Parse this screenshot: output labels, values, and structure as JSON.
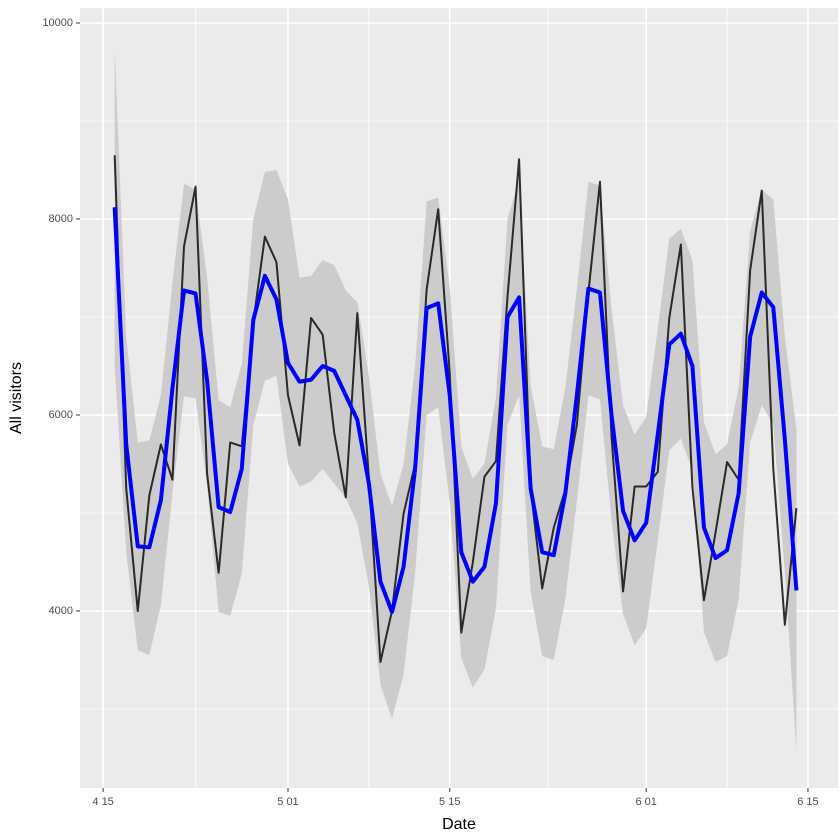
{
  "chart_data": {
    "type": "line",
    "xlabel": "Date",
    "ylabel": "All visitors",
    "x": [
      1,
      2,
      3,
      4,
      5,
      6,
      7,
      8,
      9,
      10,
      11,
      12,
      13,
      14,
      15,
      16,
      17,
      18,
      19,
      20,
      21,
      22,
      23,
      24,
      25,
      26,
      27,
      28,
      29,
      30,
      31,
      32,
      33,
      34,
      35,
      36,
      37,
      38,
      39,
      40,
      41,
      42,
      43,
      44,
      45,
      46,
      47,
      48,
      49,
      50,
      51,
      52,
      53,
      54,
      55,
      56,
      57,
      58,
      59,
      60
    ],
    "band": {
      "color": "#cccccc",
      "lower": [
        6500,
        4600,
        3600,
        3550,
        4060,
        5200,
        6190,
        6170,
        5280,
        3990,
        3950,
        4380,
        5900,
        6350,
        6400,
        5500,
        5270,
        5320,
        5450,
        5300,
        5150,
        4900,
        4250,
        3250,
        2900,
        3350,
        4380,
        6000,
        6080,
        5100,
        3520,
        3220,
        3400,
        4030,
        5900,
        6200,
        4200,
        3540,
        3500,
        4120,
        5120,
        6200,
        6160,
        4930,
        3970,
        3650,
        3820,
        4720,
        5640,
        5760,
        5430,
        3780,
        3480,
        3540,
        4120,
        5720,
        6100,
        5900,
        4400,
        2580
      ],
      "upper": [
        9750,
        6800,
        5720,
        5740,
        6200,
        7350,
        8360,
        8300,
        7400,
        6150,
        6080,
        6520,
        8000,
        8480,
        8500,
        8200,
        7400,
        7420,
        7580,
        7530,
        7270,
        7150,
        6400,
        5400,
        5070,
        5500,
        6500,
        8180,
        8220,
        7300,
        5680,
        5350,
        5500,
        6180,
        8000,
        8400,
        6300,
        5680,
        5650,
        6280,
        7280,
        8380,
        8340,
        7080,
        6100,
        5800,
        5980,
        6880,
        7800,
        7900,
        7580,
        5930,
        5600,
        5700,
        6280,
        7880,
        8300,
        8200,
        6800,
        5850
      ]
    },
    "series": [
      {
        "color": "#000000",
        "width": 2,
        "values": [
          8650,
          5250,
          4000,
          5180,
          5700,
          5340,
          7720,
          8330,
          5400,
          4390,
          5720,
          5680,
          6950,
          7820,
          7560,
          6200,
          5690,
          6990,
          6820,
          5820,
          5160,
          7040,
          5360,
          3480,
          4000,
          4990,
          5500,
          7280,
          8100,
          6420,
          3780,
          4500,
          5370,
          5530,
          7210,
          8610,
          5250,
          4230,
          4850,
          5240,
          5900,
          7250,
          8380,
          5780,
          4200,
          5270,
          5270,
          5420,
          6990,
          7740,
          5260,
          4110,
          4800,
          5520,
          5340,
          7480,
          8290,
          5450,
          3860,
          5050
        ]
      },
      {
        "color": "#0000ff",
        "width": 4,
        "values": [
          8120,
          5700,
          4660,
          4650,
          5130,
          6270,
          7270,
          7240,
          6350,
          5060,
          5010,
          5450,
          6970,
          7420,
          7180,
          6530,
          6340,
          6360,
          6500,
          6450,
          6200,
          5950,
          5300,
          4300,
          3990,
          4450,
          5450,
          7090,
          7140,
          6200,
          4600,
          4300,
          4450,
          5100,
          7000,
          7200,
          5250,
          4600,
          4570,
          5200,
          6200,
          7290,
          7250,
          6000,
          5020,
          4720,
          4900,
          5800,
          6720,
          6830,
          6500,
          4850,
          4540,
          4620,
          5200,
          6800,
          7250,
          7100,
          5750,
          4210
        ]
      }
    ],
    "xlim": [
      -2,
      63.6
    ],
    "ylim": [
      2194,
      10153
    ],
    "xticks": [
      {
        "value": 0,
        "label": "4 15"
      },
      {
        "value": 16,
        "label": "5 01"
      },
      {
        "value": 30,
        "label": "5 15"
      },
      {
        "value": 47,
        "label": "6 01"
      },
      {
        "value": 61,
        "label": "6 15"
      }
    ],
    "yticks": [
      4000,
      6000,
      8000,
      10000
    ],
    "xminor": [
      8,
      23,
      38.5,
      54
    ],
    "yminor": [
      3000,
      5000,
      7000,
      9000
    ],
    "grid": true,
    "panel_color": "#ebebeb",
    "grid_color": "#ffffff"
  }
}
